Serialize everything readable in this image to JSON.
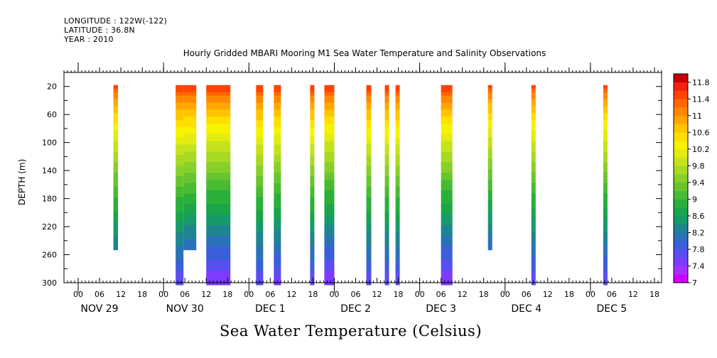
{
  "header": {
    "longitude": "LONGITUDE : 122W(-122)",
    "latitude": "LATITUDE : 36.8N",
    "year": "YEAR : 2010"
  },
  "chart_data": {
    "type": "heatmap",
    "title": "Hourly Gridded MBARI Mooring M1 Sea Water Temperature and Salinity Observations",
    "xlabel": "",
    "ylabel": "DEPTH (m)",
    "bottom_label": "Sea Water Temperature (Celsius)",
    "x_axis": {
      "unit": "hours since 2010-11-29 00:00",
      "range": [
        -4,
        164
      ],
      "tick_labels": [
        "00",
        "06",
        "12",
        "18"
      ],
      "date_labels": [
        "NOV 29",
        "NOV 30",
        "DEC  1",
        "DEC  2",
        "DEC  3",
        "DEC  4",
        "DEC  5"
      ]
    },
    "y_axis": {
      "range": [
        0,
        300
      ],
      "inverted": true,
      "tick_values": [
        20,
        60,
        100,
        140,
        180,
        220,
        260,
        300
      ]
    },
    "colorbar": {
      "min": 7,
      "max": 12,
      "step": 0.2,
      "labels": [
        "11.8",
        "11.4",
        "11",
        "10.6",
        "10.2",
        "9.8",
        "9.4",
        "9",
        "8.6",
        "8.2",
        "7.8",
        "7.4",
        "7"
      ],
      "colors": [
        "#cc00ff",
        "#a830ff",
        "#7c3cff",
        "#5a4ef0",
        "#3a5fd8",
        "#2a72b8",
        "#1e8590",
        "#179a6a",
        "#1aa54a",
        "#2ab03a",
        "#48bb33",
        "#68c52e",
        "#88cf2a",
        "#a8d923",
        "#c6e21a",
        "#e2ec10",
        "#f6f200",
        "#ffde00",
        "#ffc400",
        "#ffa600",
        "#ff8800",
        "#ff6600",
        "#ff4400",
        "#f42010",
        "#c40000"
      ]
    },
    "profiles": [
      {
        "start_hour": 9.9,
        "end_hour": 11.2,
        "max_depth": 250,
        "t_top": 11.4,
        "t_bottom": 8.2
      },
      {
        "start_hour": 27.4,
        "end_hour": 29.6,
        "max_depth": 300,
        "t_top": 11.6,
        "t_bottom": 7.6
      },
      {
        "start_hour": 29.6,
        "end_hour": 33.2,
        "max_depth": 250,
        "t_top": 11.6,
        "t_bottom": 8.0
      },
      {
        "start_hour": 36.0,
        "end_hour": 42.8,
        "max_depth": 300,
        "t_top": 11.6,
        "t_bottom": 7.4
      },
      {
        "start_hour": 50.0,
        "end_hour": 52.0,
        "max_depth": 300,
        "t_top": 11.6,
        "t_bottom": 7.6
      },
      {
        "start_hour": 55.0,
        "end_hour": 57.0,
        "max_depth": 300,
        "t_top": 11.6,
        "t_bottom": 7.5
      },
      {
        "start_hour": 65.2,
        "end_hour": 66.4,
        "max_depth": 300,
        "t_top": 11.6,
        "t_bottom": 7.6
      },
      {
        "start_hour": 69.2,
        "end_hour": 72.0,
        "max_depth": 300,
        "t_top": 11.6,
        "t_bottom": 7.4
      },
      {
        "start_hour": 81.0,
        "end_hour": 82.4,
        "max_depth": 300,
        "t_top": 11.6,
        "t_bottom": 7.6
      },
      {
        "start_hour": 86.2,
        "end_hour": 87.4,
        "max_depth": 300,
        "t_top": 11.6,
        "t_bottom": 7.6
      },
      {
        "start_hour": 89.2,
        "end_hour": 90.4,
        "max_depth": 300,
        "t_top": 11.6,
        "t_bottom": 7.6
      },
      {
        "start_hour": 102.0,
        "end_hour": 105.2,
        "max_depth": 300,
        "t_top": 11.6,
        "t_bottom": 7.4
      },
      {
        "start_hour": 115.2,
        "end_hour": 116.4,
        "max_depth": 250,
        "t_top": 11.4,
        "t_bottom": 8.0
      },
      {
        "start_hour": 127.4,
        "end_hour": 128.6,
        "max_depth": 300,
        "t_top": 11.4,
        "t_bottom": 7.6
      },
      {
        "start_hour": 147.6,
        "end_hour": 148.8,
        "max_depth": 300,
        "t_top": 11.4,
        "t_bottom": 7.6
      }
    ]
  }
}
